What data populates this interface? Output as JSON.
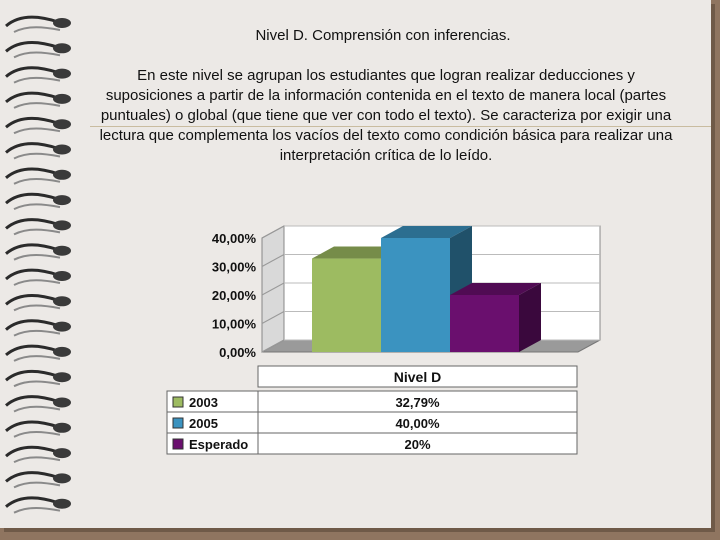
{
  "slide": {
    "title": "Nivel D. Comprensión con inferencias.",
    "paragraph": "En este nivel se agrupan los estudiantes que logran realizar deducciones y suposiciones a partir de la información contenida en el texto de manera local (partes puntuales) o global (que tiene que ver con todo el texto). Se caracteriza por exigir una lectura que complementa los vacíos del texto como condición básica para realizar una interpretación crítica de lo leído."
  },
  "chart_data": {
    "type": "bar",
    "categories": [
      "Nivel D"
    ],
    "ytick_labels": [
      "40,00%",
      "30,00%",
      "20,00%",
      "10,00%",
      "0,00%"
    ],
    "ylim": [
      0,
      40
    ],
    "series": [
      {
        "name": "2003",
        "values": [
          32.79
        ],
        "label": "32,79%",
        "color": "#9dbb61"
      },
      {
        "name": "2005",
        "values": [
          40.0
        ],
        "label": "40,00%",
        "color": "#3b93c0"
      },
      {
        "name": "Esperado",
        "values": [
          20.0
        ],
        "label": "20%",
        "color": "#6a0f6e"
      }
    ],
    "grid": true,
    "legend": "data-table"
  }
}
